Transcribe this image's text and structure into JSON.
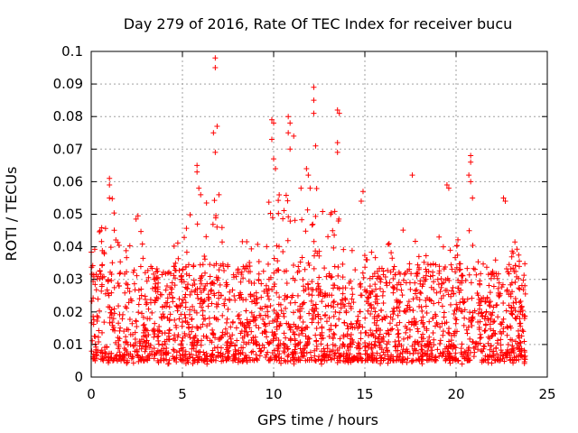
{
  "chart_data": {
    "type": "scatter",
    "title": "Day 279 of 2016, Rate Of TEC Index for receiver bucu",
    "xlabel": "GPS time / hours",
    "ylabel": "ROTI / TECUs",
    "xlim": [
      0,
      25
    ],
    "ylim": [
      0,
      0.1
    ],
    "xticks": [
      0,
      5,
      10,
      15,
      20,
      25
    ],
    "xtick_labels": [
      "0",
      "5",
      "10",
      "15",
      "20",
      "25"
    ],
    "yticks": [
      0,
      0.01,
      0.02,
      0.03,
      0.04,
      0.05,
      0.06,
      0.07,
      0.08,
      0.09,
      0.1
    ],
    "ytick_labels": [
      "0",
      "0.01",
      "0.02",
      "0.03",
      "0.04",
      "0.05",
      "0.06",
      "0.07",
      "0.08",
      "0.09",
      "0.1"
    ],
    "grid": true,
    "marker": "+",
    "color": "#ff0000",
    "series": [
      {
        "name": "ROTI",
        "x_range": [
          0,
          23.8
        ],
        "baseline_min": 0.005,
        "typical_max": 0.035,
        "envelope": [
          {
            "x": 0.0,
            "upper": 0.04
          },
          {
            "x": 0.5,
            "upper": 0.046
          },
          {
            "x": 1.0,
            "upper": 0.06
          },
          {
            "x": 1.5,
            "upper": 0.044
          },
          {
            "x": 2.0,
            "upper": 0.038
          },
          {
            "x": 2.5,
            "upper": 0.051
          },
          {
            "x": 3.0,
            "upper": 0.043
          },
          {
            "x": 3.5,
            "upper": 0.036
          },
          {
            "x": 4.0,
            "upper": 0.03
          },
          {
            "x": 4.5,
            "upper": 0.04
          },
          {
            "x": 5.0,
            "upper": 0.048
          },
          {
            "x": 5.5,
            "upper": 0.052
          },
          {
            "x": 6.0,
            "upper": 0.045
          },
          {
            "x": 6.5,
            "upper": 0.06
          },
          {
            "x": 7.0,
            "upper": 0.052
          },
          {
            "x": 7.5,
            "upper": 0.048
          },
          {
            "x": 8.0,
            "upper": 0.053
          },
          {
            "x": 8.5,
            "upper": 0.044
          },
          {
            "x": 9.0,
            "upper": 0.038
          },
          {
            "x": 9.5,
            "upper": 0.05
          },
          {
            "x": 10.0,
            "upper": 0.062
          },
          {
            "x": 10.5,
            "upper": 0.06
          },
          {
            "x": 11.0,
            "upper": 0.055
          },
          {
            "x": 11.5,
            "upper": 0.05
          },
          {
            "x": 12.0,
            "upper": 0.062
          },
          {
            "x": 12.5,
            "upper": 0.058
          },
          {
            "x": 13.0,
            "upper": 0.052
          },
          {
            "x": 13.5,
            "upper": 0.06
          },
          {
            "x": 14.0,
            "upper": 0.047
          },
          {
            "x": 14.5,
            "upper": 0.052
          },
          {
            "x": 15.0,
            "upper": 0.055
          },
          {
            "x": 15.5,
            "upper": 0.038
          },
          {
            "x": 16.0,
            "upper": 0.036
          },
          {
            "x": 16.5,
            "upper": 0.045
          },
          {
            "x": 17.0,
            "upper": 0.044
          },
          {
            "x": 17.5,
            "upper": 0.052
          },
          {
            "x": 18.0,
            "upper": 0.044
          },
          {
            "x": 18.5,
            "upper": 0.04
          },
          {
            "x": 19.0,
            "upper": 0.045
          },
          {
            "x": 19.5,
            "upper": 0.04
          },
          {
            "x": 20.0,
            "upper": 0.042
          },
          {
            "x": 20.5,
            "upper": 0.05
          },
          {
            "x": 21.0,
            "upper": 0.043
          },
          {
            "x": 21.5,
            "upper": 0.035
          },
          {
            "x": 22.0,
            "upper": 0.033
          },
          {
            "x": 22.5,
            "upper": 0.046
          },
          {
            "x": 23.0,
            "upper": 0.038
          },
          {
            "x": 23.5,
            "upper": 0.046
          },
          {
            "x": 23.8,
            "upper": 0.04
          }
        ],
        "peaks": [
          [
            6.8,
            0.098
          ],
          [
            6.8,
            0.095
          ],
          [
            6.7,
            0.075
          ],
          [
            6.9,
            0.077
          ],
          [
            6.8,
            0.069
          ],
          [
            12.2,
            0.089
          ],
          [
            12.2,
            0.085
          ],
          [
            12.2,
            0.081
          ],
          [
            12.3,
            0.071
          ],
          [
            13.5,
            0.082
          ],
          [
            13.6,
            0.081
          ],
          [
            13.5,
            0.072
          ],
          [
            13.5,
            0.069
          ],
          [
            9.9,
            0.079
          ],
          [
            10.0,
            0.078
          ],
          [
            9.9,
            0.073
          ],
          [
            10.0,
            0.067
          ],
          [
            10.1,
            0.064
          ],
          [
            10.8,
            0.08
          ],
          [
            10.9,
            0.078
          ],
          [
            10.8,
            0.075
          ],
          [
            11.1,
            0.074
          ],
          [
            10.9,
            0.07
          ],
          [
            11.8,
            0.064
          ],
          [
            11.9,
            0.062
          ],
          [
            12.0,
            0.058
          ],
          [
            20.8,
            0.068
          ],
          [
            20.8,
            0.066
          ],
          [
            20.7,
            0.062
          ],
          [
            20.8,
            0.06
          ],
          [
            20.9,
            0.055
          ],
          [
            1.0,
            0.061
          ],
          [
            1.0,
            0.059
          ],
          [
            1.0,
            0.055
          ],
          [
            5.8,
            0.065
          ],
          [
            5.8,
            0.063
          ],
          [
            5.9,
            0.058
          ],
          [
            17.6,
            0.062
          ],
          [
            19.5,
            0.059
          ],
          [
            19.6,
            0.058
          ],
          [
            22.6,
            0.055
          ],
          [
            22.7,
            0.054
          ],
          [
            14.9,
            0.057
          ],
          [
            14.8,
            0.054
          ],
          [
            6.0,
            0.056
          ],
          [
            7.0,
            0.056
          ],
          [
            11.5,
            0.058
          ]
        ]
      }
    ]
  }
}
